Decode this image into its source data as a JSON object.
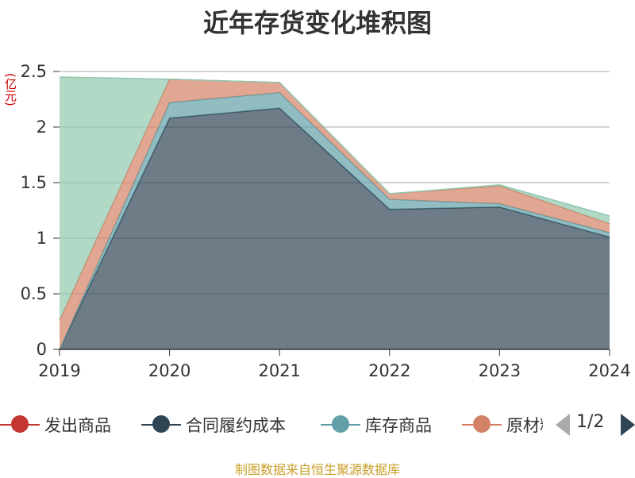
{
  "title": "近年存货变化堆积图",
  "unit": "(亿元)",
  "source": "制图数据来自恒生聚源数据库",
  "legend": {
    "page": "1/2"
  },
  "chart_data": {
    "type": "area",
    "stacked": true,
    "x": [
      "2019",
      "2020",
      "2021",
      "2022",
      "2023",
      "2024"
    ],
    "ylim": [
      0,
      2.5
    ],
    "yticks": [
      "0",
      "0.5",
      "1",
      "1.5",
      "2",
      "2.5"
    ],
    "grid": true,
    "legend_position": "bottom",
    "series": [
      {
        "name": "发出商品",
        "color": "#c23531",
        "values": [
          0,
          0,
          0,
          0,
          0,
          0
        ]
      },
      {
        "name": "合同履约成本",
        "color": "#2f4554",
        "values": [
          0,
          2.08,
          2.17,
          1.26,
          1.28,
          1.01
        ]
      },
      {
        "name": "库存商品",
        "color": "#61a0a8",
        "values": [
          0,
          0.14,
          0.14,
          0.09,
          0.03,
          0.04
        ]
      },
      {
        "name": "原材料",
        "color": "#d48265",
        "values": [
          0.26,
          0.21,
          0.09,
          0.05,
          0.16,
          0.08
        ]
      },
      {
        "name": "",
        "color": "#91c7ae",
        "values": [
          2.19,
          0,
          0,
          0,
          0.01,
          0.07
        ]
      }
    ]
  }
}
